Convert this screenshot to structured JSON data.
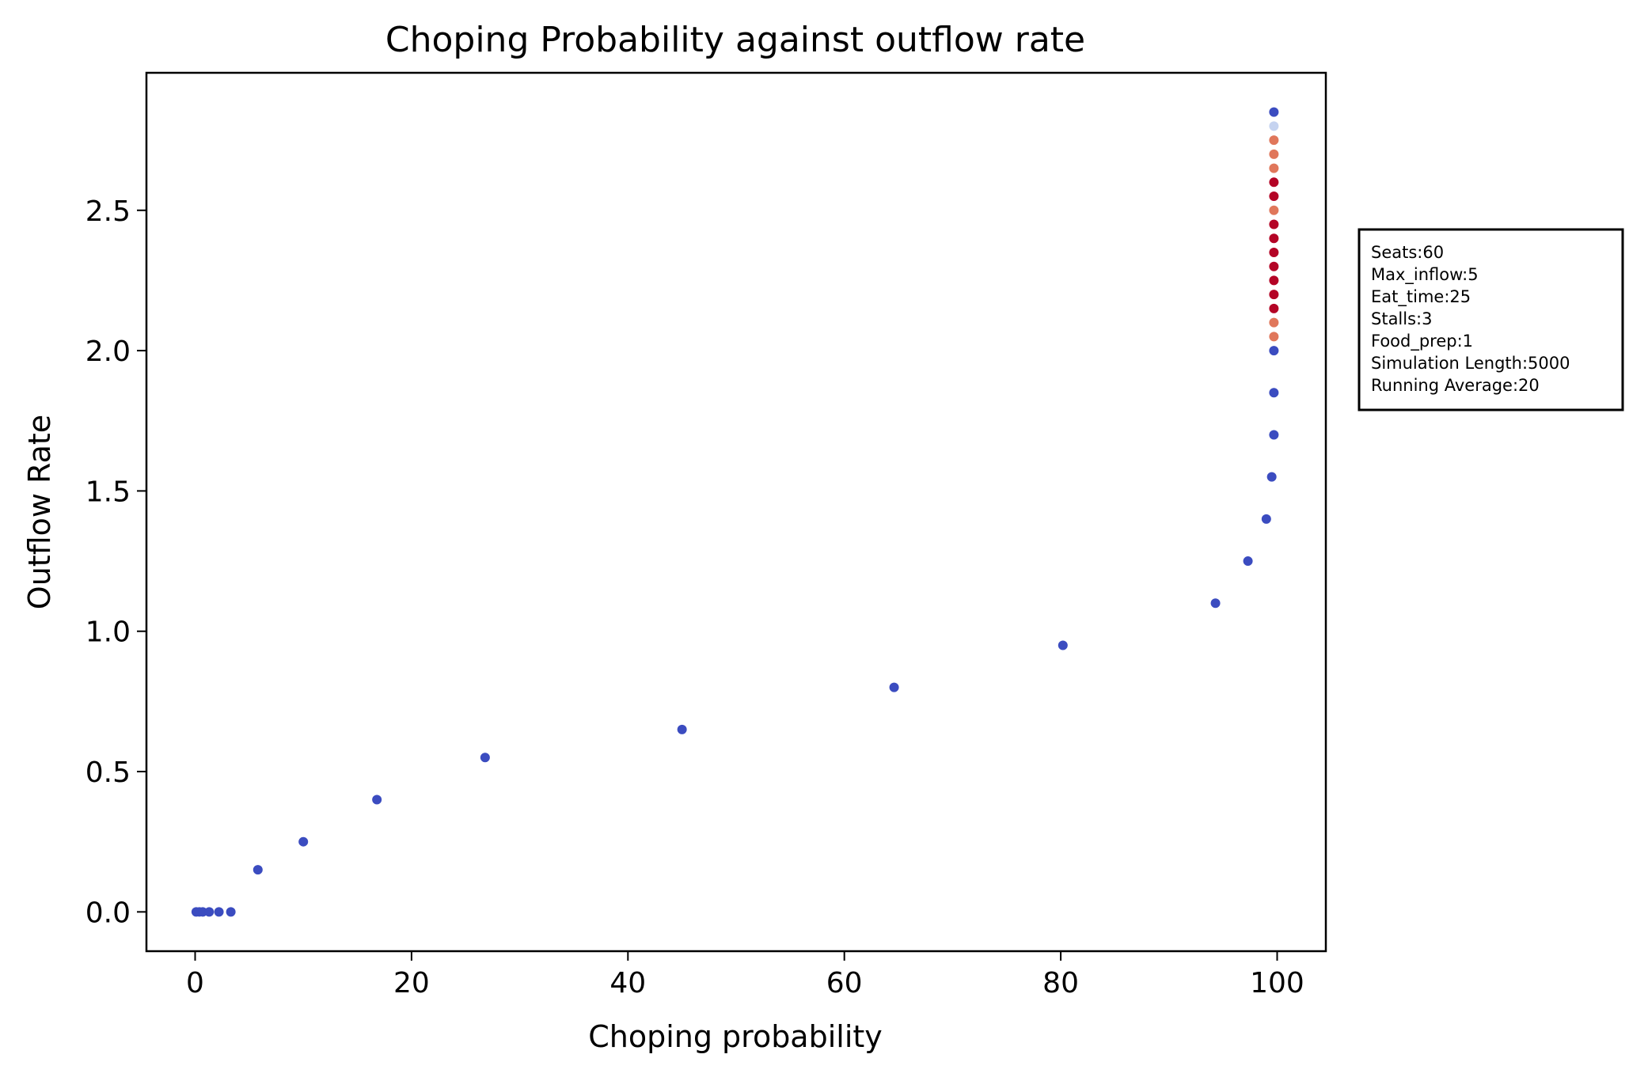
{
  "chart_data": {
    "type": "scatter",
    "title": "Choping Probability against outflow rate",
    "xlabel": "Choping probability",
    "ylabel": "Outflow Rate",
    "xlim": [
      -4.5,
      104.5
    ],
    "ylim": [
      -0.14,
      2.99
    ],
    "xticks": [
      0,
      20,
      40,
      60,
      80,
      100
    ],
    "yticks": [
      0.0,
      0.5,
      1.0,
      1.5,
      2.0,
      2.5
    ],
    "xtick_labels": [
      "0",
      "20",
      "40",
      "60",
      "80",
      "100"
    ],
    "ytick_labels": [
      "0.0",
      "0.5",
      "1.0",
      "1.5",
      "2.0",
      "2.5"
    ],
    "grid": false,
    "colormap": "coolwarm",
    "points": [
      {
        "x": 0.1,
        "y": 0.0,
        "color": "#3b4cc0"
      },
      {
        "x": 0.4,
        "y": 0.0,
        "color": "#3b4cc0"
      },
      {
        "x": 0.7,
        "y": 0.0,
        "color": "#3b4cc0"
      },
      {
        "x": 1.3,
        "y": 0.0,
        "color": "#3b4cc0"
      },
      {
        "x": 2.2,
        "y": 0.0,
        "color": "#3b4cc0"
      },
      {
        "x": 3.3,
        "y": 0.0,
        "color": "#3b4cc0"
      },
      {
        "x": 5.8,
        "y": 0.15,
        "color": "#3b4cc0"
      },
      {
        "x": 10.0,
        "y": 0.25,
        "color": "#3b4cc0"
      },
      {
        "x": 16.8,
        "y": 0.4,
        "color": "#3b4cc0"
      },
      {
        "x": 26.8,
        "y": 0.55,
        "color": "#3b4cc0"
      },
      {
        "x": 45.0,
        "y": 0.65,
        "color": "#3b4cc0"
      },
      {
        "x": 64.6,
        "y": 0.8,
        "color": "#3b4cc0"
      },
      {
        "x": 80.2,
        "y": 0.95,
        "color": "#3b4cc0"
      },
      {
        "x": 94.3,
        "y": 1.1,
        "color": "#3b4cc0"
      },
      {
        "x": 97.3,
        "y": 1.25,
        "color": "#3b4cc0"
      },
      {
        "x": 99.0,
        "y": 1.4,
        "color": "#3b4cc0"
      },
      {
        "x": 99.5,
        "y": 1.55,
        "color": "#3b4cc0"
      },
      {
        "x": 99.7,
        "y": 1.7,
        "color": "#3b4cc0"
      },
      {
        "x": 99.7,
        "y": 1.85,
        "color": "#3b4cc0"
      },
      {
        "x": 99.7,
        "y": 2.0,
        "color": "#3b4cc0"
      },
      {
        "x": 99.7,
        "y": 2.05,
        "color": "#e0775b"
      },
      {
        "x": 99.7,
        "y": 2.1,
        "color": "#e0775b"
      },
      {
        "x": 99.7,
        "y": 2.15,
        "color": "#b40426"
      },
      {
        "x": 99.7,
        "y": 2.2,
        "color": "#b40426"
      },
      {
        "x": 99.7,
        "y": 2.25,
        "color": "#b40426"
      },
      {
        "x": 99.7,
        "y": 2.3,
        "color": "#b40426"
      },
      {
        "x": 99.7,
        "y": 2.35,
        "color": "#b40426"
      },
      {
        "x": 99.7,
        "y": 2.4,
        "color": "#b40426"
      },
      {
        "x": 99.7,
        "y": 2.45,
        "color": "#b40426"
      },
      {
        "x": 99.7,
        "y": 2.5,
        "color": "#e0775b"
      },
      {
        "x": 99.7,
        "y": 2.55,
        "color": "#b40426"
      },
      {
        "x": 99.7,
        "y": 2.6,
        "color": "#b40426"
      },
      {
        "x": 99.7,
        "y": 2.65,
        "color": "#e0775b"
      },
      {
        "x": 99.7,
        "y": 2.7,
        "color": "#e0775b"
      },
      {
        "x": 99.7,
        "y": 2.75,
        "color": "#e0775b"
      },
      {
        "x": 99.7,
        "y": 2.8,
        "color": "#c5d3f0"
      },
      {
        "x": 99.7,
        "y": 2.85,
        "color": "#3b4cc0"
      }
    ],
    "annotation_box": {
      "lines": [
        "Seats:60",
        "Max_inflow:5",
        "Eat_time:25",
        "Stalls:3",
        "Food_prep:1",
        "Simulation Length:5000",
        "Running Average:20"
      ]
    }
  }
}
